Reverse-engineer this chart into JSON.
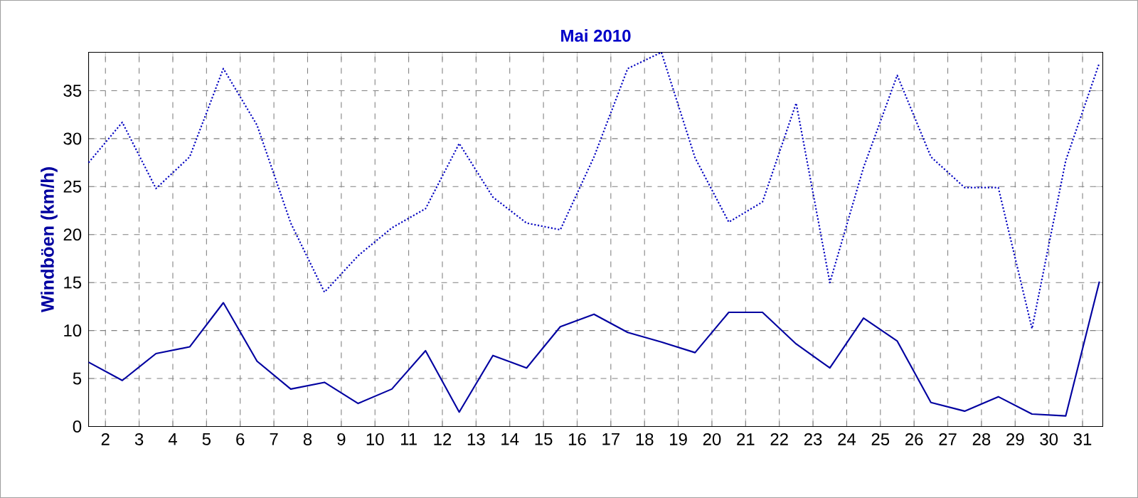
{
  "chart_data": {
    "type": "line",
    "title": "Mai 2010",
    "ylabel": "Windböen  (km/h)",
    "x": [
      1.5,
      2.5,
      3.5,
      4.5,
      5.5,
      6.5,
      7.5,
      8.5,
      9.5,
      10.5,
      11.5,
      12.5,
      13.5,
      14.5,
      15.5,
      16.5,
      17.5,
      18.5,
      19.5,
      20.5,
      21.5,
      22.5,
      23.5,
      24.5,
      25.5,
      26.5,
      27.5,
      28.5,
      29.5,
      30.5,
      31.5
    ],
    "series": [
      {
        "color": "#0000c0",
        "line_style": "dotted",
        "values": [
          27.5,
          31.7,
          24.8,
          28.1,
          37.3,
          31.4,
          21.2,
          14.0,
          17.8,
          20.7,
          22.7,
          29.5,
          23.9,
          21.2,
          20.5,
          28.1,
          37.3,
          39.0,
          28.0,
          21.3,
          23.4,
          33.7,
          15.0,
          27.0,
          36.6,
          28.1,
          24.9,
          24.9,
          10.2,
          27.7,
          37.9
        ]
      },
      {
        "color": "#0000a0",
        "line_style": "solid",
        "values": [
          6.7,
          4.8,
          7.6,
          8.3,
          12.9,
          6.8,
          3.9,
          4.6,
          2.4,
          3.9,
          7.9,
          1.5,
          7.4,
          6.1,
          10.4,
          11.7,
          9.8,
          8.8,
          7.7,
          11.9,
          11.9,
          8.6,
          6.1,
          11.3,
          8.9,
          2.5,
          1.6,
          3.1,
          1.3,
          1.1,
          15.1
        ]
      }
    ],
    "xlim": [
      1.5,
      31.6
    ],
    "ylim": [
      0,
      39
    ],
    "xticks": [
      2,
      3,
      4,
      5,
      6,
      7,
      8,
      9,
      10,
      11,
      12,
      13,
      14,
      15,
      16,
      17,
      18,
      19,
      20,
      21,
      22,
      23,
      24,
      25,
      26,
      27,
      28,
      29,
      30,
      31
    ],
    "yticks": [
      0,
      5,
      10,
      15,
      20,
      25,
      30,
      35
    ],
    "grid": true,
    "marker": "none"
  }
}
